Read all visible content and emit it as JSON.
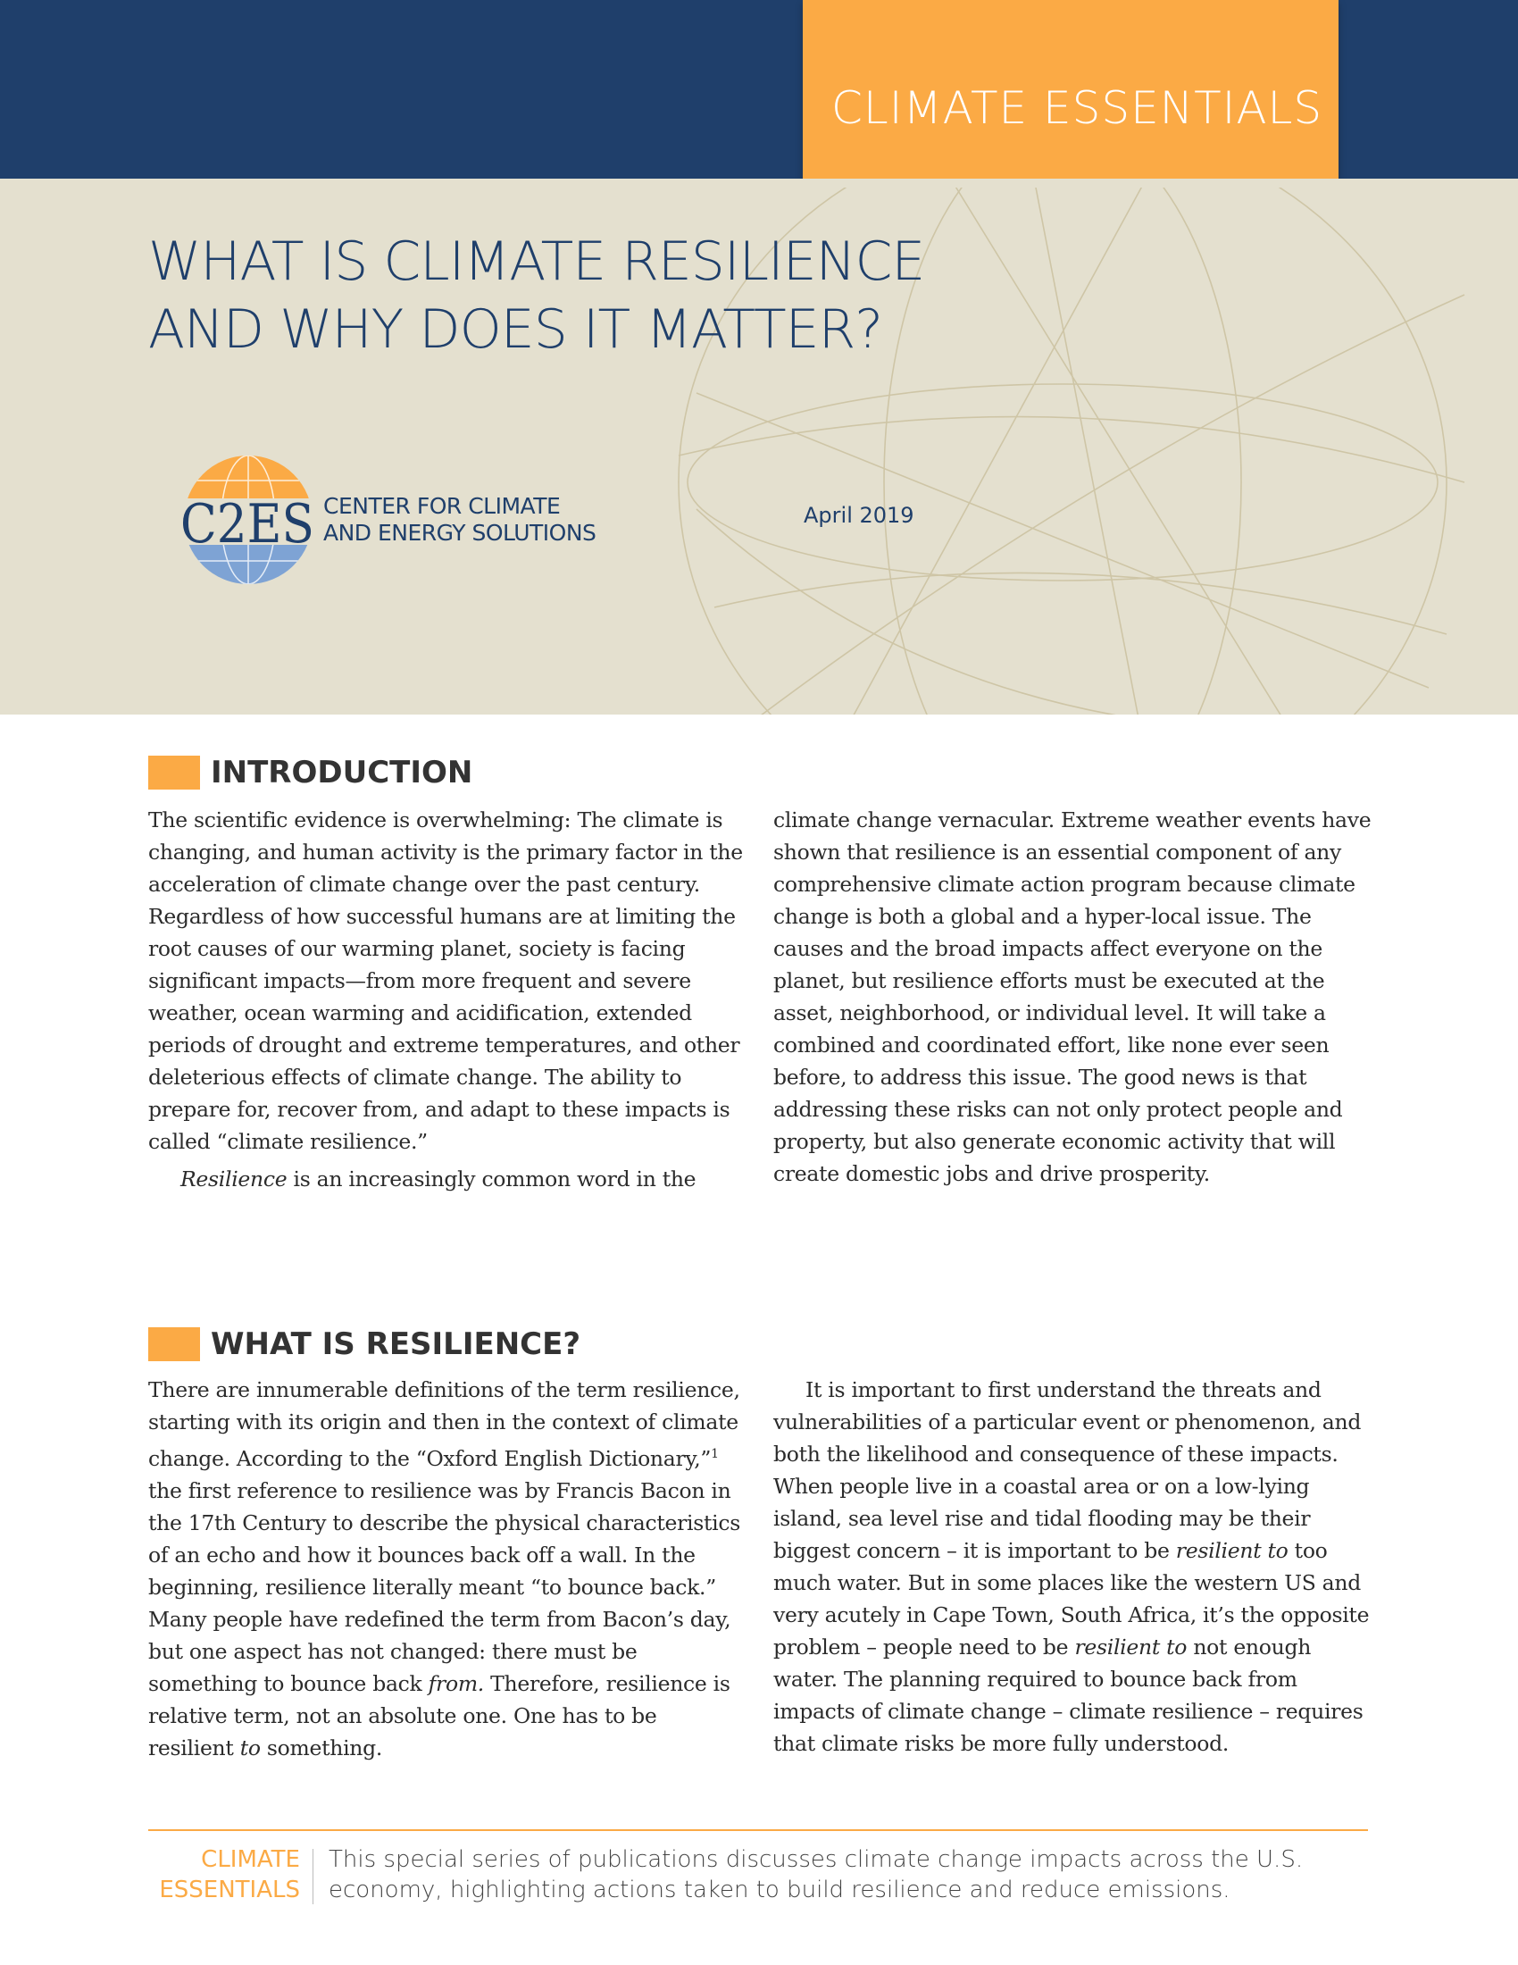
{
  "header": {
    "series": "CLIMATE ESSENTIALS",
    "title_line1": "WHAT IS CLIMATE RESILIENCE",
    "title_line2": "AND WHY DOES IT MATTER?",
    "logo_mark": "C2ES",
    "org_line1": "CENTER FOR CLIMATE",
    "org_line2": "AND ENERGY SOLUTIONS",
    "date": "April 2019"
  },
  "colors": {
    "navy": "#1f3f6b",
    "orange": "#fbaa45",
    "beige": "#e4e0cf"
  },
  "intro": {
    "heading": "INTRODUCTION",
    "left_p1": "The scientific evidence is overwhelming: The climate is changing, and human activity is the primary factor in the acceleration of climate change over the past century. Regardless of how successful humans are at limiting the root causes of our warming planet, society is facing significant impacts—from more frequent and severe weather, ocean warming and acidification, extended periods of drought and extreme temperatures, and other deleterious effects of climate change. The ability to prepare for, recover from, and adapt to these impacts is called “climate resilience.”",
    "left_p2_italic": "Resilience",
    "left_p2": " is an increasingly common word in the",
    "right_p1": "climate change vernacular. Extreme weather events have shown that resilience is an essential component of any comprehensive climate action program because climate change is both a global and a hyper-local issue. The causes and the broad impacts affect everyone on the planet, but resilience efforts must be executed at the asset, neighborhood, or individual level. It will take a combined and coordinated effort, like none ever seen before, to address this issue. The good news is that addressing these risks can not only protect people and property, but also generate economic activity that will create domestic jobs and drive prosperity."
  },
  "resilience": {
    "heading": "WHAT IS RESILIENCE?",
    "left_a": "There are innumerable definitions of the term resilience, starting with its origin and then in the context of climate change. According to the “Oxford English Dictionary,”",
    "footnote": "1",
    "left_b": " the first reference to resilience was by Francis Bacon in the 17th Century to describe the physical characteristics of an echo and how it bounces back off a wall. In the beginning, resilience literally meant “to bounce back.” Many people have redefined the term from Bacon’s day, but one aspect has not changed: there must be something to bounce back ",
    "left_from": "from.",
    "left_c": " Therefore, resilience is relative term, not an absolute one. One has to be resilient ",
    "left_to": "to",
    "left_d": " something.",
    "right_a": "It is important to first understand the threats and vulnerabilities of a particular event or phenomenon, and both the likelihood and consequence of these impacts. When people live in a coastal area or on a low-lying island, sea level rise and tidal flooding may be their biggest concern – it is important to be ",
    "right_res1": "resilient to",
    "right_b": " too much water. But in some places like the western US and very acutely in Cape Town, South Africa, it’s the opposite problem – people need to be ",
    "right_res2": "resilient to",
    "right_c": " not enough water. The planning required to bounce back from impacts of climate change – climate resilience – requires that climate risks be more fully understood."
  },
  "footer": {
    "label_line1": "CLIMATE",
    "label_line2": "ESSENTIALS",
    "text": "This special series of publications discusses climate change impacts across the U.S. economy, highlighting actions taken to build resilience and reduce emissions."
  }
}
